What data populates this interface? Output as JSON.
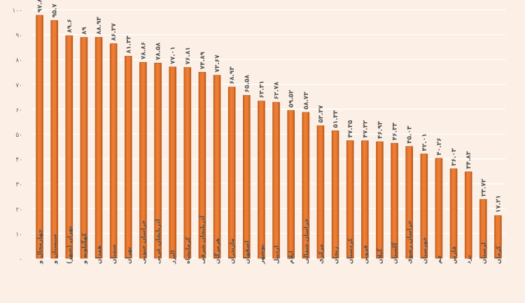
{
  "chart_data": {
    "type": "bar",
    "title": "",
    "xlabel": "",
    "ylabel": "",
    "ylim": [
      0,
      100
    ],
    "yticks": [
      "۰",
      "۱۰",
      "۲۰",
      "۳۰",
      "۴۰",
      "۵۰",
      "۶۰",
      "۷۰",
      "۸۰",
      "۹۰",
      "۱۰۰"
    ],
    "grid": true,
    "bar_color": "#e8772e",
    "bar_edge_color": "#b4541b",
    "categories": [
      "چهارمحال و",
      "سیستان و",
      "تهران (شهر)",
      "کهگیلویه و",
      "همدان",
      "سمنان",
      "تهران",
      "خراسان جنوبی",
      "آذربایجان غربی",
      "البرز",
      "کرمانشاه",
      "آذربایجان شرقی",
      "هرمزگان",
      "مازندران",
      "اصفهان",
      "بوشهر",
      "اردبیل",
      "ایلام",
      "خراسان شمالی",
      "مرکزی",
      "زنجان",
      "کردستان",
      "قزوین",
      "گیلان",
      "گلستان",
      "خراسان رضوی",
      "خوزستان",
      "قم",
      "فارس",
      "یزد",
      "لرستان",
      "کرمان"
    ],
    "values": [
      97.8,
      95.7,
      89.6,
      88.9,
      88.93,
      86.37,
      81.33,
      78.86,
      78.58,
      77.01,
      76.81,
      74.89,
      73.67,
      68.93,
      65.58,
      63.31,
      62.78,
      59.52,
      58.73,
      53.37,
      51.33,
      47.35,
      47.32,
      46.93,
      46.33,
      45.03,
      42.01,
      40.26,
      36.03,
      34.83,
      23.72,
      17.21
    ],
    "value_labels": [
      "۹۷.۸",
      "۹۵.۷",
      "۸۹.۶",
      "۸۹",
      "۸۸.۹۳",
      "۸۶.۳۷",
      "۸۱.۳۳",
      "۷۸.۸۶",
      "۷۸.۵۸",
      "۷۷.۰۱",
      "۷۶.۸۱",
      "۷۴.۸۹",
      "۷۳.۶۷",
      "۶۸.۹۳",
      "۶۵.۵۸",
      "۶۳.۳۱",
      "۶۲.۷۸",
      "۵۹.۵۲",
      "۵۸.۷۳",
      "۵۳.۳۷",
      "۵۱.۳۳",
      "۴۷.۳۵",
      "۴۷.۳۲",
      "۴۶.۹۳",
      "۴۶.۳۳",
      "۴۵.۰۳",
      "۴۲.۰۱",
      "۴۰.۲۶",
      "۳۶.۰۳",
      "۳۴.۸۳",
      "۲۳.۷۲",
      "۱۷.۲۱"
    ]
  }
}
